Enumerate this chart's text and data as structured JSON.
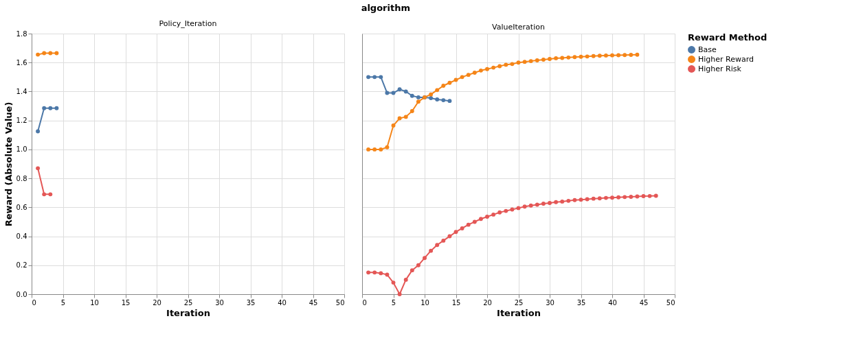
{
  "chart_data": [
    {
      "type": "line",
      "title": "Policy_Iteration",
      "annotations": [
        "algorithm"
      ],
      "xlabel": "Iteration",
      "ylabel": "Reward (Absolute Value)",
      "xlim": [
        0,
        50
      ],
      "xticks": [
        0,
        5,
        10,
        15,
        20,
        25,
        30,
        35,
        40,
        45,
        50
      ],
      "ylim": [
        0,
        1.8
      ],
      "yticks": [
        {
          "value": 0,
          "label": "0.0"
        },
        0.2,
        0.4,
        0.6,
        0.8,
        {
          "value": 1,
          "label": "1.0"
        },
        1.2,
        1.4,
        1.6,
        1.8
      ],
      "grid": true,
      "marker": "circle",
      "legend": "right",
      "legend_title": "Reward Method",
      "line_style": "solid",
      "series": [
        {
          "name": "Base",
          "color": "#4c78a8",
          "x": [
            1,
            2,
            3,
            4
          ],
          "values": [
            1.125,
            1.285,
            1.285,
            1.285
          ]
        },
        {
          "name": "Higher Reward",
          "color": "#f58518",
          "x": [
            1,
            2,
            3,
            4
          ],
          "values": [
            1.655,
            1.665,
            1.665,
            1.665
          ]
        },
        {
          "name": "Higher Risk",
          "color": "#e45756",
          "x": [
            1,
            2,
            3
          ],
          "values": [
            0.87,
            0.69,
            0.69
          ]
        }
      ]
    },
    {
      "type": "line",
      "title": "ValueIteration",
      "xlabel": "Iteration",
      "xlim": [
        0,
        50
      ],
      "xticks": [
        0,
        5,
        10,
        15,
        20,
        25,
        30,
        35,
        40,
        45,
        50
      ],
      "ylim": [
        0,
        1.8
      ],
      "yticks": [
        0,
        0.2,
        0.4,
        0.6,
        0.8,
        1,
        1.2,
        1.4,
        1.6,
        1.8
      ],
      "tick_labels": "x",
      "grid": true,
      "marker": "circle",
      "legend": "right",
      "line_style": "solid",
      "series": [
        {
          "name": "Base",
          "color": "#4c78a8",
          "x": [
            1,
            2,
            3,
            4,
            5,
            6,
            7,
            8,
            9,
            10,
            11,
            12,
            13,
            14
          ],
          "values": [
            1.5,
            1.5,
            1.5,
            1.39,
            1.39,
            1.415,
            1.4,
            1.37,
            1.36,
            1.36,
            1.355,
            1.345,
            1.34,
            1.335
          ]
        },
        {
          "name": "Higher Reward",
          "color": "#f58518",
          "x": [
            1,
            2,
            3,
            4,
            5,
            6,
            7,
            8,
            9,
            10,
            11,
            12,
            13,
            14,
            15,
            16,
            17,
            18,
            19,
            20,
            21,
            22,
            23,
            24,
            25,
            26,
            27,
            28,
            29,
            30,
            31,
            32,
            33,
            34,
            35,
            36,
            37,
            38,
            39,
            40,
            41,
            42,
            43,
            44
          ],
          "values": [
            1.0,
            1.0,
            1.0,
            1.015,
            1.165,
            1.215,
            1.225,
            1.265,
            1.33,
            1.36,
            1.38,
            1.41,
            1.44,
            1.46,
            1.48,
            1.5,
            1.515,
            1.53,
            1.545,
            1.555,
            1.565,
            1.575,
            1.585,
            1.59,
            1.6,
            1.605,
            1.61,
            1.615,
            1.62,
            1.625,
            1.63,
            1.632,
            1.635,
            1.638,
            1.64,
            1.642,
            1.645,
            1.647,
            1.649,
            1.65,
            1.651,
            1.652,
            1.653,
            1.654
          ]
        },
        {
          "name": "Higher Risk",
          "color": "#e45756",
          "x": [
            1,
            2,
            3,
            4,
            5,
            6,
            7,
            8,
            9,
            10,
            11,
            12,
            13,
            14,
            15,
            16,
            17,
            18,
            19,
            20,
            21,
            22,
            23,
            24,
            25,
            26,
            27,
            28,
            29,
            30,
            31,
            32,
            33,
            34,
            35,
            36,
            37,
            38,
            39,
            40,
            41,
            42,
            43,
            44,
            45,
            46,
            47
          ],
          "values": [
            0.15,
            0.15,
            0.145,
            0.135,
            0.08,
            0.0,
            0.1,
            0.165,
            0.2,
            0.25,
            0.3,
            0.34,
            0.37,
            0.4,
            0.43,
            0.455,
            0.48,
            0.5,
            0.52,
            0.535,
            0.55,
            0.565,
            0.575,
            0.585,
            0.595,
            0.605,
            0.612,
            0.618,
            0.625,
            0.63,
            0.636,
            0.64,
            0.645,
            0.65,
            0.653,
            0.656,
            0.66,
            0.662,
            0.665,
            0.667,
            0.669,
            0.671,
            0.673,
            0.675,
            0.677,
            0.678,
            0.68
          ]
        }
      ]
    }
  ]
}
